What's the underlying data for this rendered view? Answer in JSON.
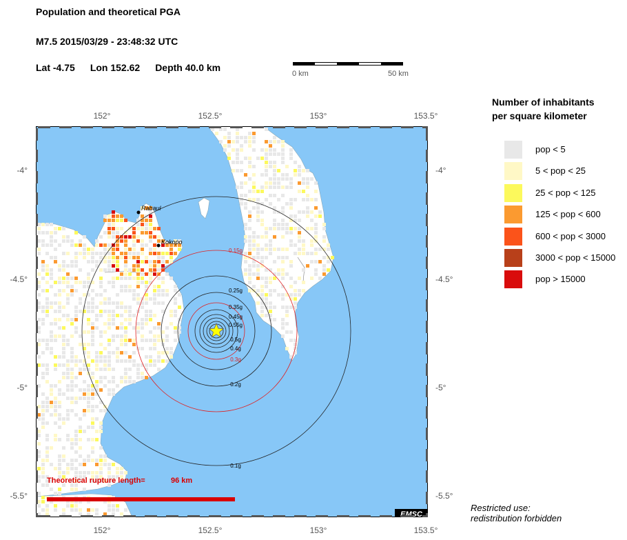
{
  "header": {
    "title": "Population and theoretical PGA",
    "event": "M7.5  2015/03/29 - 23:48:32 UTC",
    "lat": "Lat -4.75",
    "lon": "Lon 152.62",
    "depth": "Depth  40.0 km"
  },
  "scale": {
    "start_label": "0 km",
    "end_label": "50 km"
  },
  "axes": {
    "lon_ticks": [
      "152°",
      "152.5°",
      "153°",
      "153.5°"
    ],
    "lat_ticks": [
      "-4°",
      "-4.5°",
      "-5°",
      "-5.5°"
    ]
  },
  "places": {
    "rabaul": "Rabaul",
    "kokopo": "Kokopo"
  },
  "pga_labels": [
    "0.1g",
    "0.15g",
    "0.2g",
    "0.25g",
    "0.3g",
    "0.35g",
    "0.4g",
    "0.45g",
    "0.5g",
    "0.55g"
  ],
  "rupture": {
    "label": "Theoretical rupture length=",
    "value": "96 km"
  },
  "logo": "EMSC",
  "legend": {
    "title_line1": "Number of inhabitants",
    "title_line2": "per square kilometer",
    "items": [
      {
        "label": "pop < 5",
        "color": "#e8e8e8"
      },
      {
        "label": "5 < pop < 25",
        "color": "#fff8c6"
      },
      {
        "label": "25 < pop < 125",
        "color": "#fcf95c"
      },
      {
        "label": "125 < pop < 600",
        "color": "#fb9a30"
      },
      {
        "label": "600 < pop < 3000",
        "color": "#fb531a"
      },
      {
        "label": "3000 < pop < 15000",
        "color": "#b8401a"
      },
      {
        "label": "pop > 15000",
        "color": "#d90c0c"
      }
    ]
  },
  "restricted": {
    "line1": "Restricted use:",
    "line2": "redistribution forbidden"
  },
  "colors": {
    "sea": "#87c7f7",
    "land": "#ffffff",
    "rupture": "#d90000",
    "epicenter": "#ffff00"
  }
}
